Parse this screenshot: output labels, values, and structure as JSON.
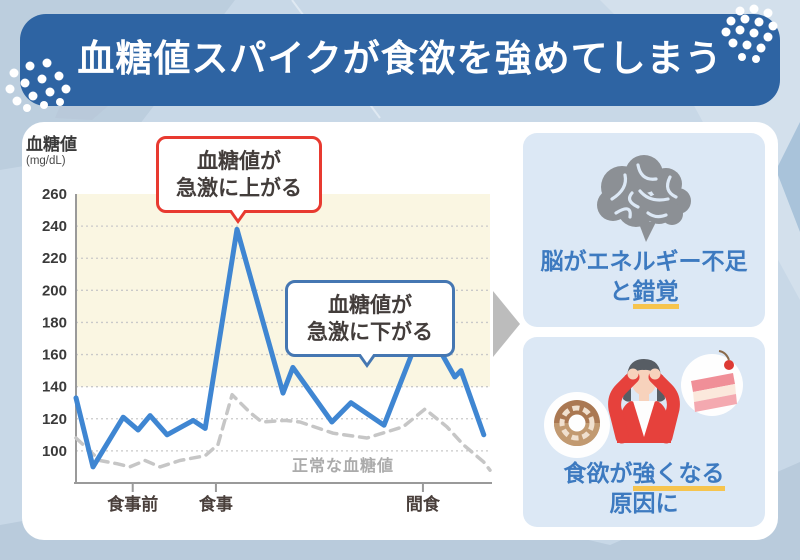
{
  "title": "血糖値スパイクが食欲を強めてしまう",
  "chart": {
    "y_axis_title": "血糖値",
    "y_axis_unit": "(mg/dL)",
    "normal_line_label": "正常な血糖値",
    "callout_up_line1": "血糖値が",
    "callout_up_line2": "急激に上がる",
    "callout_down_line1": "血糖値が",
    "callout_down_line2": "急激に下がる"
  },
  "chart_data": {
    "type": "line",
    "x_axis": {
      "ticks": [
        {
          "label": "食事前",
          "t": 0.137
        },
        {
          "label": "食事",
          "t": 0.338
        },
        {
          "label": "間食",
          "t": 0.838
        }
      ]
    },
    "y_axis": {
      "label": "血糖値",
      "unit": "(mg/dL)",
      "min": 80,
      "max": 260,
      "tick_values": [
        100,
        120,
        140,
        160,
        180,
        200,
        220,
        240,
        260
      ]
    },
    "high_zone": {
      "from": 140,
      "to": 260,
      "color": "#faf6e2"
    },
    "grid": {
      "color": "#c9c9c9",
      "dotted": true
    },
    "series": [
      {
        "id": "normal-blood-sugar",
        "label": "正常な血糖値",
        "color": "#c6c6c6",
        "style": "dashed",
        "points": [
          [
            0.0,
            108
          ],
          [
            0.058,
            94
          ],
          [
            0.099,
            92
          ],
          [
            0.13,
            90
          ],
          [
            0.167,
            94
          ],
          [
            0.203,
            90
          ],
          [
            0.251,
            94
          ],
          [
            0.312,
            97
          ],
          [
            0.343,
            104
          ],
          [
            0.377,
            135
          ],
          [
            0.42,
            124
          ],
          [
            0.449,
            118
          ],
          [
            0.505,
            119
          ],
          [
            0.541,
            118
          ],
          [
            0.621,
            111
          ],
          [
            0.703,
            108
          ],
          [
            0.79,
            115
          ],
          [
            0.843,
            126
          ],
          [
            0.896,
            115
          ],
          [
            0.935,
            104
          ],
          [
            0.985,
            93
          ],
          [
            1.0,
            88
          ]
        ]
      },
      {
        "id": "spiking-blood-sugar",
        "label": "血糖値",
        "color": "#3f86d2",
        "style": "solid",
        "points": [
          [
            0.0,
            133
          ],
          [
            0.041,
            90
          ],
          [
            0.114,
            121
          ],
          [
            0.15,
            113
          ],
          [
            0.179,
            122
          ],
          [
            0.22,
            110
          ],
          [
            0.283,
            119
          ],
          [
            0.312,
            114
          ],
          [
            0.389,
            238
          ],
          [
            0.5,
            136
          ],
          [
            0.524,
            152
          ],
          [
            0.618,
            118
          ],
          [
            0.664,
            130
          ],
          [
            0.744,
            116
          ],
          [
            0.841,
            180
          ],
          [
            0.915,
            146
          ],
          [
            0.93,
            150
          ],
          [
            0.985,
            110
          ]
        ]
      }
    ]
  },
  "right_panel": {
    "brain_line1": "脳がエネルギー不足",
    "brain_line2_pre": "と",
    "brain_line2_hl": "錯覚",
    "craving_line1_pre": "食欲が",
    "craving_line1_hl": "強くなる",
    "craving_line2": "原因に"
  },
  "colors": {
    "banner_blue": "#2e64a3",
    "spike_line_blue": "#3f86d2",
    "normal_line_gray": "#c6c6c6",
    "callout_red": "#e83a30",
    "callout_blue": "#4577b2",
    "highlight_yellow": "#f6c44e",
    "card_bg": "#dce8f5",
    "panel_text_blue": "#3d7ac0",
    "high_zone_cream": "#faf6e2",
    "arrow_gray": "#bcbcbc"
  }
}
